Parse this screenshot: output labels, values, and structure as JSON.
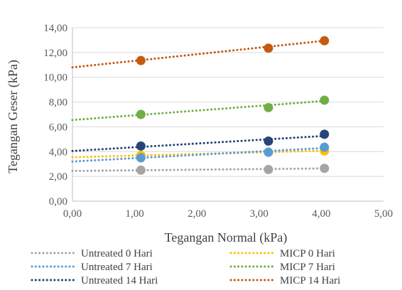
{
  "chart_data": {
    "type": "scatter",
    "title": "",
    "xlabel": "Tegangan Normal (kPa)",
    "ylabel": "Tegangan Geser (kPa)",
    "xlim": [
      0,
      5
    ],
    "ylim": [
      0,
      14
    ],
    "x_ticks": [
      0,
      1,
      2,
      3,
      4,
      5
    ],
    "y_ticks": [
      0,
      2,
      4,
      6,
      8,
      10,
      12,
      14
    ],
    "x_tick_labels": [
      "0,00",
      "1,00",
      "2,00",
      "3,00",
      "4,00",
      "5,00"
    ],
    "y_tick_labels": [
      "0,00",
      "2,00",
      "4,00",
      "6,00",
      "8,00",
      "10,00",
      "12,00",
      "14,00"
    ],
    "grid": "horizontal",
    "legend_position": "bottom",
    "trendline": "linear",
    "series": [
      {
        "name": "Untreated 0 Hari",
        "color": "#a5a5a5",
        "x": [
          1.1,
          3.15,
          4.05
        ],
        "y": [
          2.5,
          2.55,
          2.65
        ],
        "trend": [
          2.44,
          0.05
        ]
      },
      {
        "name": "MICP 0 Hari",
        "color": "#ffc000",
        "x": [
          1.1,
          3.15,
          4.05
        ],
        "y": [
          3.7,
          3.95,
          4.05
        ],
        "trend": [
          3.55,
          0.13
        ]
      },
      {
        "name": "Untreated 7 Hari",
        "color": "#5b9bd5",
        "x": [
          1.1,
          3.15,
          4.05
        ],
        "y": [
          3.5,
          3.95,
          4.35
        ],
        "trend": [
          3.2,
          0.27
        ]
      },
      {
        "name": "MICP 7 Hari",
        "color": "#70ad47",
        "x": [
          1.1,
          3.15,
          4.05
        ],
        "y": [
          7.0,
          7.55,
          8.15
        ],
        "trend": [
          6.55,
          0.38
        ]
      },
      {
        "name": "Untreated 14 Hari",
        "color": "#264478",
        "x": [
          1.1,
          3.15,
          4.05
        ],
        "y": [
          4.45,
          4.85,
          5.4
        ],
        "trend": [
          4.05,
          0.3
        ]
      },
      {
        "name": "MICP 14 Hari",
        "color": "#c55a11",
        "x": [
          1.1,
          3.15,
          4.05
        ],
        "y": [
          11.35,
          12.35,
          12.95
        ],
        "trend": [
          10.8,
          0.53
        ]
      }
    ]
  }
}
